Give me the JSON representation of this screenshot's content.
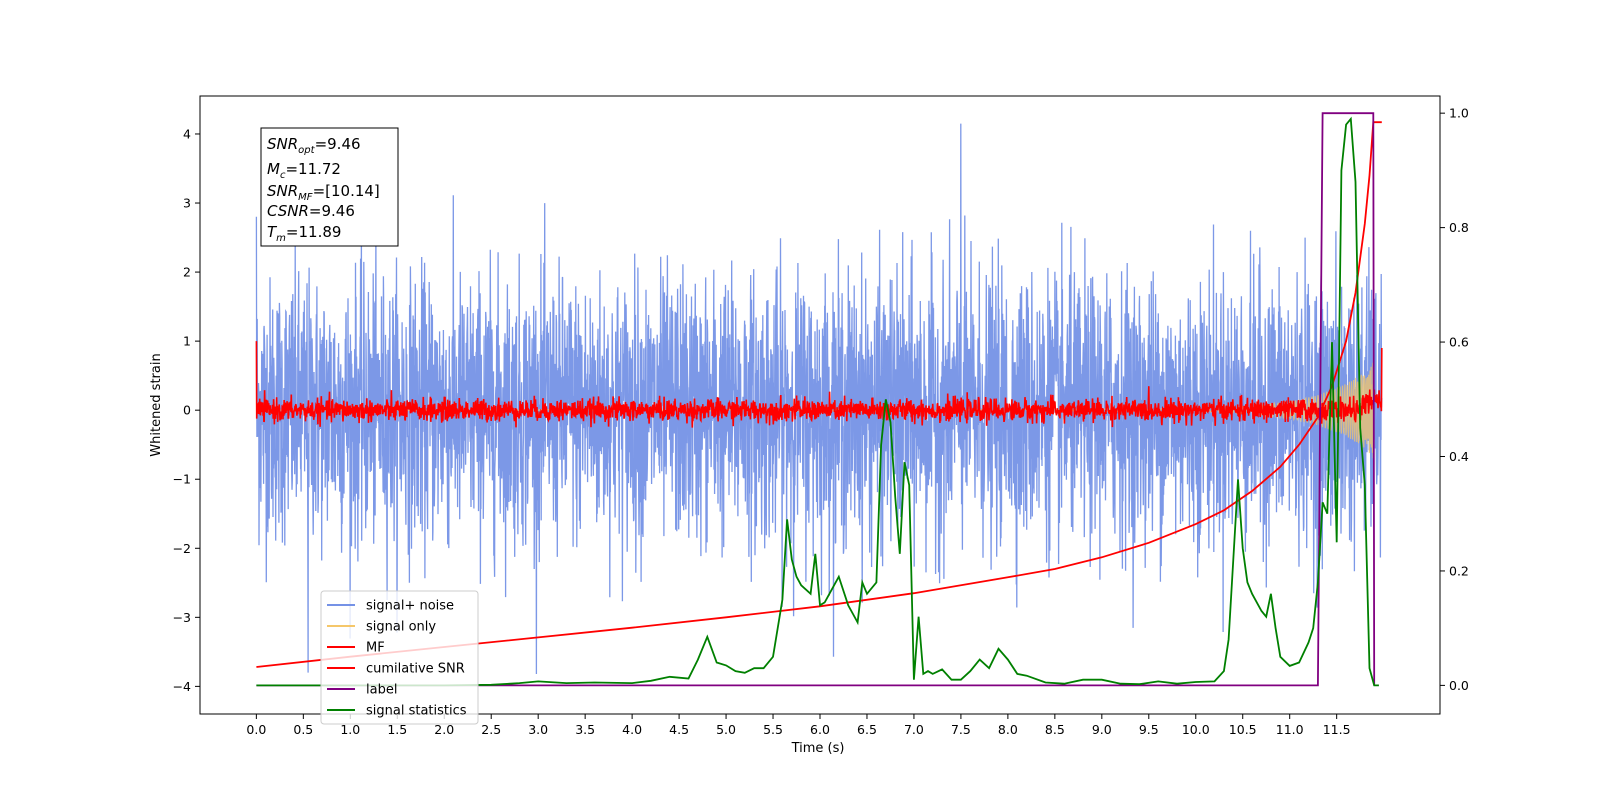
{
  "chart_data": {
    "type": "line",
    "xlabel": "Time (s)",
    "ylabel": "Whitened strain",
    "xlim": [
      -0.6,
      12.6
    ],
    "ylim": [
      -4.4,
      4.55
    ],
    "y2lim": [
      -0.05,
      1.03
    ],
    "x_ticks": [
      "0.0",
      "0.5",
      "1.0",
      "1.5",
      "2.0",
      "2.5",
      "3.0",
      "3.5",
      "4.0",
      "4.5",
      "5.0",
      "5.5",
      "6.0",
      "6.5",
      "7.0",
      "7.5",
      "8.0",
      "8.5",
      "9.0",
      "9.5",
      "10.0",
      "10.5",
      "11.0",
      "11.5"
    ],
    "y_ticks": [
      "−4",
      "−3",
      "−2",
      "−1",
      "0",
      "1",
      "2",
      "3",
      "4"
    ],
    "y2_ticks": [
      "0.0",
      "0.2",
      "0.4",
      "0.6",
      "0.8",
      "1.0"
    ],
    "legend_position": "lower left",
    "legend": [
      {
        "label": "signal+ noise",
        "color": "#7592e6"
      },
      {
        "label": "signal only",
        "color": "#f5c76a"
      },
      {
        "label": "MF",
        "color": "#ff0000"
      },
      {
        "label": "cumilative SNR",
        "color": "#ff0000"
      },
      {
        "label": "label",
        "color": "#800080"
      },
      {
        "label": "signal statistics",
        "color": "#008000"
      }
    ],
    "stats_box": {
      "snr_opt": "=9.46",
      "mc": "=11.72",
      "snr_mf": "=[10.14]",
      "csnr": "=9.46",
      "tm": "=11.89"
    },
    "series": [
      {
        "name": "signal+ noise",
        "axis": "left",
        "color": "#7592e6",
        "description_x_range": [
          0.0,
          11.98
        ],
        "amplitude_sigma": 1.0,
        "peak_max": 4.15,
        "peak_min": -3.85
      },
      {
        "name": "signal only",
        "axis": "left",
        "color": "#f5c76a",
        "envelope": {
          "x": [
            0.0,
            10.0,
            10.5,
            11.0,
            11.3,
            11.6,
            11.8,
            11.89,
            11.9
          ],
          "amp": [
            0.0,
            0.02,
            0.05,
            0.12,
            0.22,
            0.38,
            0.55,
            0.7,
            0.0
          ]
        }
      },
      {
        "name": "MF",
        "axis": "left",
        "color": "#ff0000",
        "start_value": 1.0,
        "end_value": 0.9,
        "noise_amplitude": 0.09,
        "x_range": [
          0.0,
          11.98
        ]
      },
      {
        "name": "cumilative SNR",
        "axis": "left",
        "color": "#ff0000",
        "x": [
          0.0,
          1.0,
          2.0,
          3.0,
          4.0,
          5.0,
          6.0,
          7.0,
          8.0,
          8.5,
          9.0,
          9.5,
          10.0,
          10.3,
          10.6,
          10.9,
          11.1,
          11.3,
          11.45,
          11.6,
          11.7,
          11.8,
          11.85,
          11.89,
          11.9,
          11.98
        ],
        "values": [
          -3.72,
          -3.57,
          -3.43,
          -3.29,
          -3.15,
          -3.0,
          -2.84,
          -2.65,
          -2.42,
          -2.3,
          -2.13,
          -1.92,
          -1.65,
          -1.45,
          -1.17,
          -0.82,
          -0.5,
          -0.1,
          0.35,
          1.0,
          1.7,
          2.7,
          3.4,
          4.17,
          4.17,
          4.17
        ]
      },
      {
        "name": "label",
        "axis": "right",
        "color": "#800080",
        "x": [
          0.0,
          11.3,
          11.35,
          11.89,
          11.9
        ],
        "values": [
          0.0,
          0.0,
          1.0,
          1.0,
          0.0
        ]
      },
      {
        "name": "signal statistics",
        "axis": "right",
        "color": "#008000",
        "x": [
          0.0,
          0.5,
          1.0,
          1.5,
          2.0,
          2.5,
          2.8,
          3.0,
          3.3,
          3.6,
          4.0,
          4.2,
          4.4,
          4.6,
          4.7,
          4.8,
          4.9,
          5.0,
          5.1,
          5.2,
          5.3,
          5.4,
          5.5,
          5.6,
          5.65,
          5.7,
          5.75,
          5.8,
          5.9,
          5.95,
          6.0,
          6.05,
          6.1,
          6.2,
          6.3,
          6.4,
          6.45,
          6.5,
          6.6,
          6.65,
          6.7,
          6.75,
          6.8,
          6.85,
          6.9,
          6.95,
          7.0,
          7.05,
          7.1,
          7.15,
          7.2,
          7.3,
          7.4,
          7.5,
          7.6,
          7.7,
          7.8,
          7.9,
          8.0,
          8.1,
          8.2,
          8.4,
          8.6,
          8.8,
          9.0,
          9.2,
          9.4,
          9.6,
          9.8,
          10.0,
          10.2,
          10.3,
          10.35,
          10.4,
          10.45,
          10.5,
          10.55,
          10.6,
          10.7,
          10.75,
          10.8,
          10.85,
          10.9,
          11.0,
          11.1,
          11.2,
          11.25,
          11.3,
          11.35,
          11.4,
          11.45,
          11.5,
          11.55,
          11.6,
          11.65,
          11.7,
          11.75,
          11.8,
          11.85,
          11.9,
          11.95
        ],
        "values": [
          0.0,
          0.0,
          0.0,
          0.0,
          0.0,
          0.001,
          0.004,
          0.007,
          0.004,
          0.005,
          0.004,
          0.008,
          0.015,
          0.012,
          0.045,
          0.085,
          0.04,
          0.035,
          0.025,
          0.022,
          0.03,
          0.03,
          0.05,
          0.15,
          0.29,
          0.22,
          0.19,
          0.175,
          0.16,
          0.23,
          0.14,
          0.145,
          0.16,
          0.19,
          0.14,
          0.11,
          0.18,
          0.16,
          0.18,
          0.42,
          0.5,
          0.46,
          0.33,
          0.23,
          0.39,
          0.35,
          0.01,
          0.12,
          0.02,
          0.025,
          0.02,
          0.028,
          0.01,
          0.01,
          0.025,
          0.045,
          0.03,
          0.064,
          0.045,
          0.02,
          0.017,
          0.005,
          0.003,
          0.01,
          0.01,
          0.003,
          0.002,
          0.007,
          0.003,
          0.006,
          0.007,
          0.025,
          0.08,
          0.22,
          0.36,
          0.24,
          0.18,
          0.16,
          0.13,
          0.12,
          0.16,
          0.1,
          0.05,
          0.034,
          0.04,
          0.075,
          0.1,
          0.18,
          0.32,
          0.3,
          0.6,
          0.25,
          0.9,
          0.98,
          0.99,
          0.88,
          0.45,
          0.35,
          0.03,
          0.0,
          0.0
        ]
      }
    ]
  }
}
